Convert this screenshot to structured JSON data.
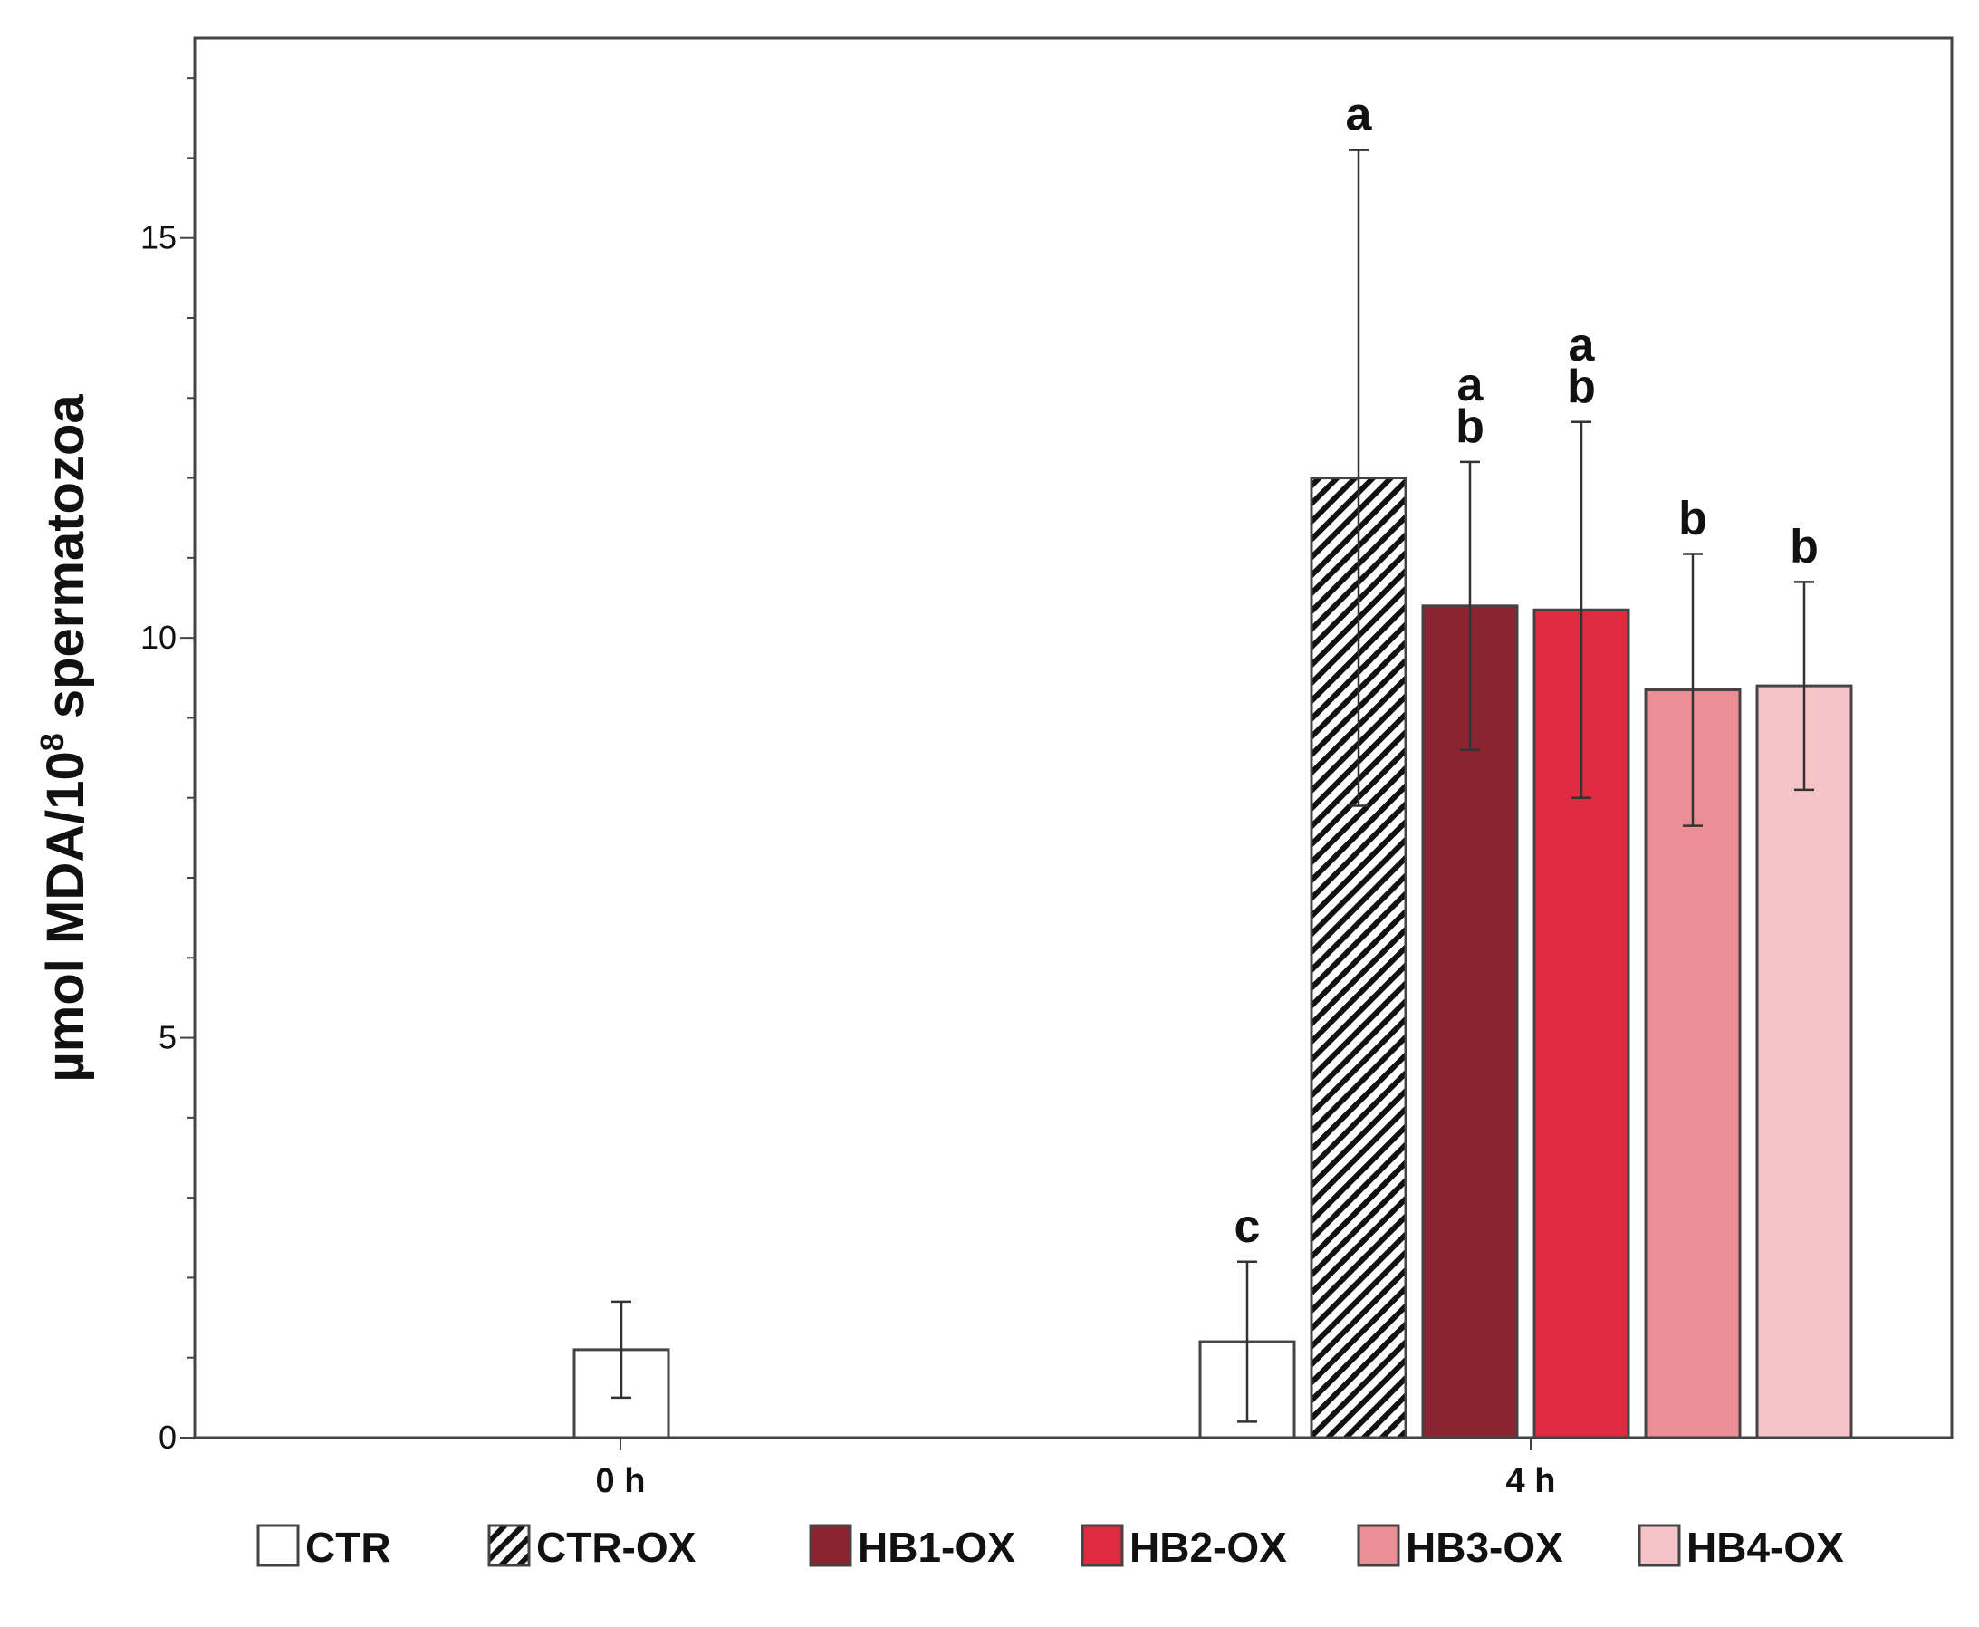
{
  "chart_data": {
    "type": "bar",
    "title": "",
    "xlabel": "",
    "ylabel": {
      "prefix": "µmol MDA/10",
      "superscript": "8",
      "suffix": " spermatozoa"
    },
    "ylim": [
      0,
      17.5
    ],
    "yticks": [
      0,
      5,
      10,
      15
    ],
    "categories": [
      "0 h",
      "4 h"
    ],
    "series": [
      {
        "name": "CTR",
        "color": "#ffffff",
        "pattern": "none",
        "values": [
          1.1,
          1.2
        ],
        "errors": [
          0.6,
          1.0
        ],
        "labels": [
          "",
          "c"
        ]
      },
      {
        "name": "CTR-OX",
        "color": "#ffffff",
        "pattern": "hatch",
        "values": [
          null,
          12.0
        ],
        "errors": [
          null,
          4.1
        ],
        "labels": [
          "",
          "a"
        ]
      },
      {
        "name": "HB1-OX",
        "color": "#8c2430",
        "pattern": "none",
        "values": [
          null,
          10.4
        ],
        "errors": [
          null,
          1.8
        ],
        "labels": [
          "",
          "a\nb"
        ]
      },
      {
        "name": "HB2-OX",
        "color": "#e02a40",
        "pattern": "none",
        "values": [
          null,
          10.35
        ],
        "errors": [
          null,
          2.35
        ],
        "labels": [
          "",
          "a\nb"
        ]
      },
      {
        "name": "HB3-OX",
        "color": "#ea8f95",
        "pattern": "none",
        "values": [
          null,
          9.35
        ],
        "errors": [
          null,
          1.7
        ],
        "labels": [
          "",
          "b"
        ]
      },
      {
        "name": "HB4-OX",
        "color": "#f6c4c7",
        "pattern": "none",
        "values": [
          null,
          9.4
        ],
        "errors": [
          null,
          1.3
        ],
        "labels": [
          "",
          "b"
        ]
      }
    ],
    "legend": {
      "position": "bottom"
    }
  }
}
